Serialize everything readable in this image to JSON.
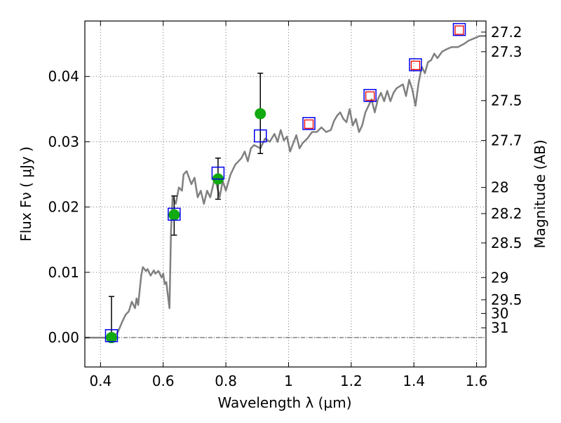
{
  "chart_data": {
    "type": "scatter",
    "xlabel": "Wavelength  λ (μm)",
    "ylabel": "Flux  Fν  ( μJy )",
    "y2label": "Magnitude (AB)",
    "xlim": [
      0.35,
      1.63
    ],
    "ylim": [
      -0.0045,
      0.0485
    ],
    "x_ticks": [
      0.4,
      0.6,
      0.8,
      1.0,
      1.2,
      1.4,
      1.6
    ],
    "x_tick_labels": [
      "0.4",
      "0.6",
      "0.8",
      "1",
      "1.2",
      "1.4",
      "1.6"
    ],
    "y_ticks": [
      0.0,
      0.01,
      0.02,
      0.03,
      0.04
    ],
    "y_tick_labels": [
      "0.00",
      "0.01",
      "0.02",
      "0.03",
      "0.04"
    ],
    "right_axis_ticks": [
      {
        "label": "27.2",
        "flux": 0.0468
      },
      {
        "label": "27.3",
        "flux": 0.0438
      },
      {
        "label": "27.5",
        "flux": 0.0363
      },
      {
        "label": "27.7",
        "flux": 0.0302
      },
      {
        "label": "28",
        "flux": 0.023
      },
      {
        "label": "28.2",
        "flux": 0.019
      },
      {
        "label": "28.5",
        "flux": 0.0145
      },
      {
        "label": "29",
        "flux": 0.0092
      },
      {
        "label": "29.5",
        "flux": 0.0058
      },
      {
        "label": "30",
        "flux": 0.0037
      },
      {
        "label": "31",
        "flux": 0.0015
      }
    ],
    "grid": true,
    "zero_line": true,
    "colors": {
      "sed": "#808080",
      "measured": "#11aa11",
      "model_box": "#0000ee",
      "upper_box": "#ee0000",
      "errorbar": "#000000",
      "grid": "#777777"
    },
    "sed_curve": [
      [
        0.35,
        0.0
      ],
      [
        0.44,
        0.0
      ],
      [
        0.455,
        0.0008
      ],
      [
        0.47,
        0.0025
      ],
      [
        0.48,
        0.0035
      ],
      [
        0.49,
        0.004
      ],
      [
        0.5,
        0.0055
      ],
      [
        0.51,
        0.0045
      ],
      [
        0.515,
        0.006
      ],
      [
        0.52,
        0.005
      ],
      [
        0.53,
        0.0095
      ],
      [
        0.535,
        0.0108
      ],
      [
        0.545,
        0.0102
      ],
      [
        0.55,
        0.0105
      ],
      [
        0.56,
        0.0095
      ],
      [
        0.57,
        0.0103
      ],
      [
        0.575,
        0.0098
      ],
      [
        0.585,
        0.0102
      ],
      [
        0.595,
        0.0092
      ],
      [
        0.6,
        0.0098
      ],
      [
        0.605,
        0.0082
      ],
      [
        0.61,
        0.0085
      ],
      [
        0.615,
        0.0065
      ],
      [
        0.62,
        0.0045
      ],
      [
        0.625,
        0.0165
      ],
      [
        0.63,
        0.0215
      ],
      [
        0.64,
        0.0205
      ],
      [
        0.65,
        0.023
      ],
      [
        0.66,
        0.0225
      ],
      [
        0.665,
        0.025
      ],
      [
        0.675,
        0.0255
      ],
      [
        0.69,
        0.0235
      ],
      [
        0.7,
        0.0245
      ],
      [
        0.71,
        0.0215
      ],
      [
        0.72,
        0.0225
      ],
      [
        0.73,
        0.0205
      ],
      [
        0.74,
        0.0225
      ],
      [
        0.75,
        0.0215
      ],
      [
        0.765,
        0.0245
      ],
      [
        0.78,
        0.0215
      ],
      [
        0.79,
        0.024
      ],
      [
        0.8,
        0.0225
      ],
      [
        0.815,
        0.025
      ],
      [
        0.83,
        0.0265
      ],
      [
        0.85,
        0.0275
      ],
      [
        0.86,
        0.0285
      ],
      [
        0.87,
        0.027
      ],
      [
        0.88,
        0.029
      ],
      [
        0.89,
        0.0295
      ],
      [
        0.91,
        0.029
      ],
      [
        0.925,
        0.0305
      ],
      [
        0.94,
        0.03
      ],
      [
        0.955,
        0.0312
      ],
      [
        0.965,
        0.03
      ],
      [
        0.975,
        0.0318
      ],
      [
        0.985,
        0.0302
      ],
      [
        0.995,
        0.0308
      ],
      [
        1.005,
        0.0285
      ],
      [
        1.015,
        0.0298
      ],
      [
        1.025,
        0.031
      ],
      [
        1.035,
        0.029
      ],
      [
        1.045,
        0.0298
      ],
      [
        1.06,
        0.0305
      ],
      [
        1.075,
        0.0315
      ],
      [
        1.09,
        0.0315
      ],
      [
        1.105,
        0.0322
      ],
      [
        1.12,
        0.0315
      ],
      [
        1.135,
        0.0318
      ],
      [
        1.145,
        0.0332
      ],
      [
        1.155,
        0.034
      ],
      [
        1.165,
        0.0345
      ],
      [
        1.175,
        0.0335
      ],
      [
        1.185,
        0.033
      ],
      [
        1.195,
        0.035
      ],
      [
        1.205,
        0.0325
      ],
      [
        1.215,
        0.0335
      ],
      [
        1.225,
        0.0315
      ],
      [
        1.235,
        0.0325
      ],
      [
        1.245,
        0.0345
      ],
      [
        1.255,
        0.0355
      ],
      [
        1.265,
        0.0365
      ],
      [
        1.275,
        0.0345
      ],
      [
        1.285,
        0.0365
      ],
      [
        1.295,
        0.0375
      ],
      [
        1.305,
        0.0362
      ],
      [
        1.315,
        0.0378
      ],
      [
        1.325,
        0.0362
      ],
      [
        1.335,
        0.0375
      ],
      [
        1.345,
        0.0382
      ],
      [
        1.355,
        0.0385
      ],
      [
        1.365,
        0.0388
      ],
      [
        1.375,
        0.037
      ],
      [
        1.385,
        0.0395
      ],
      [
        1.395,
        0.038
      ],
      [
        1.405,
        0.0355
      ],
      [
        1.415,
        0.039
      ],
      [
        1.425,
        0.0415
      ],
      [
        1.435,
        0.0405
      ],
      [
        1.445,
        0.0422
      ],
      [
        1.455,
        0.0425
      ],
      [
        1.465,
        0.0435
      ],
      [
        1.475,
        0.0428
      ],
      [
        1.49,
        0.0438
      ],
      [
        1.505,
        0.0442
      ],
      [
        1.52,
        0.0445
      ],
      [
        1.54,
        0.0445
      ],
      [
        1.56,
        0.045
      ],
      [
        1.575,
        0.0455
      ],
      [
        1.59,
        0.0458
      ],
      [
        1.61,
        0.0462
      ],
      [
        1.63,
        0.0462
      ]
    ],
    "measured_points": [
      {
        "x": 0.435,
        "y": 0.0,
        "yerr_low": 0.0,
        "yerr_high": 0.0063
      },
      {
        "x": 0.635,
        "y": 0.0188,
        "yerr_low": 0.0157,
        "yerr_high": 0.0217
      },
      {
        "x": 0.775,
        "y": 0.0243,
        "yerr_low": 0.0212,
        "yerr_high": 0.0275
      },
      {
        "x": 0.91,
        "y": 0.0343,
        "yerr_low": 0.0282,
        "yerr_high": 0.0405
      }
    ],
    "model_boxes": [
      {
        "x": 0.435,
        "y": 0.0003
      },
      {
        "x": 0.635,
        "y": 0.0189
      },
      {
        "x": 0.775,
        "y": 0.0252
      },
      {
        "x": 0.91,
        "y": 0.0309
      },
      {
        "x": 1.065,
        "y": 0.0328
      },
      {
        "x": 1.26,
        "y": 0.0371
      },
      {
        "x": 1.405,
        "y": 0.0418
      },
      {
        "x": 1.545,
        "y": 0.0472
      }
    ],
    "upper_boxes": [
      {
        "x": 1.065,
        "y": 0.0327
      },
      {
        "x": 1.26,
        "y": 0.037
      },
      {
        "x": 1.405,
        "y": 0.0417
      },
      {
        "x": 1.545,
        "y": 0.0471
      }
    ]
  }
}
